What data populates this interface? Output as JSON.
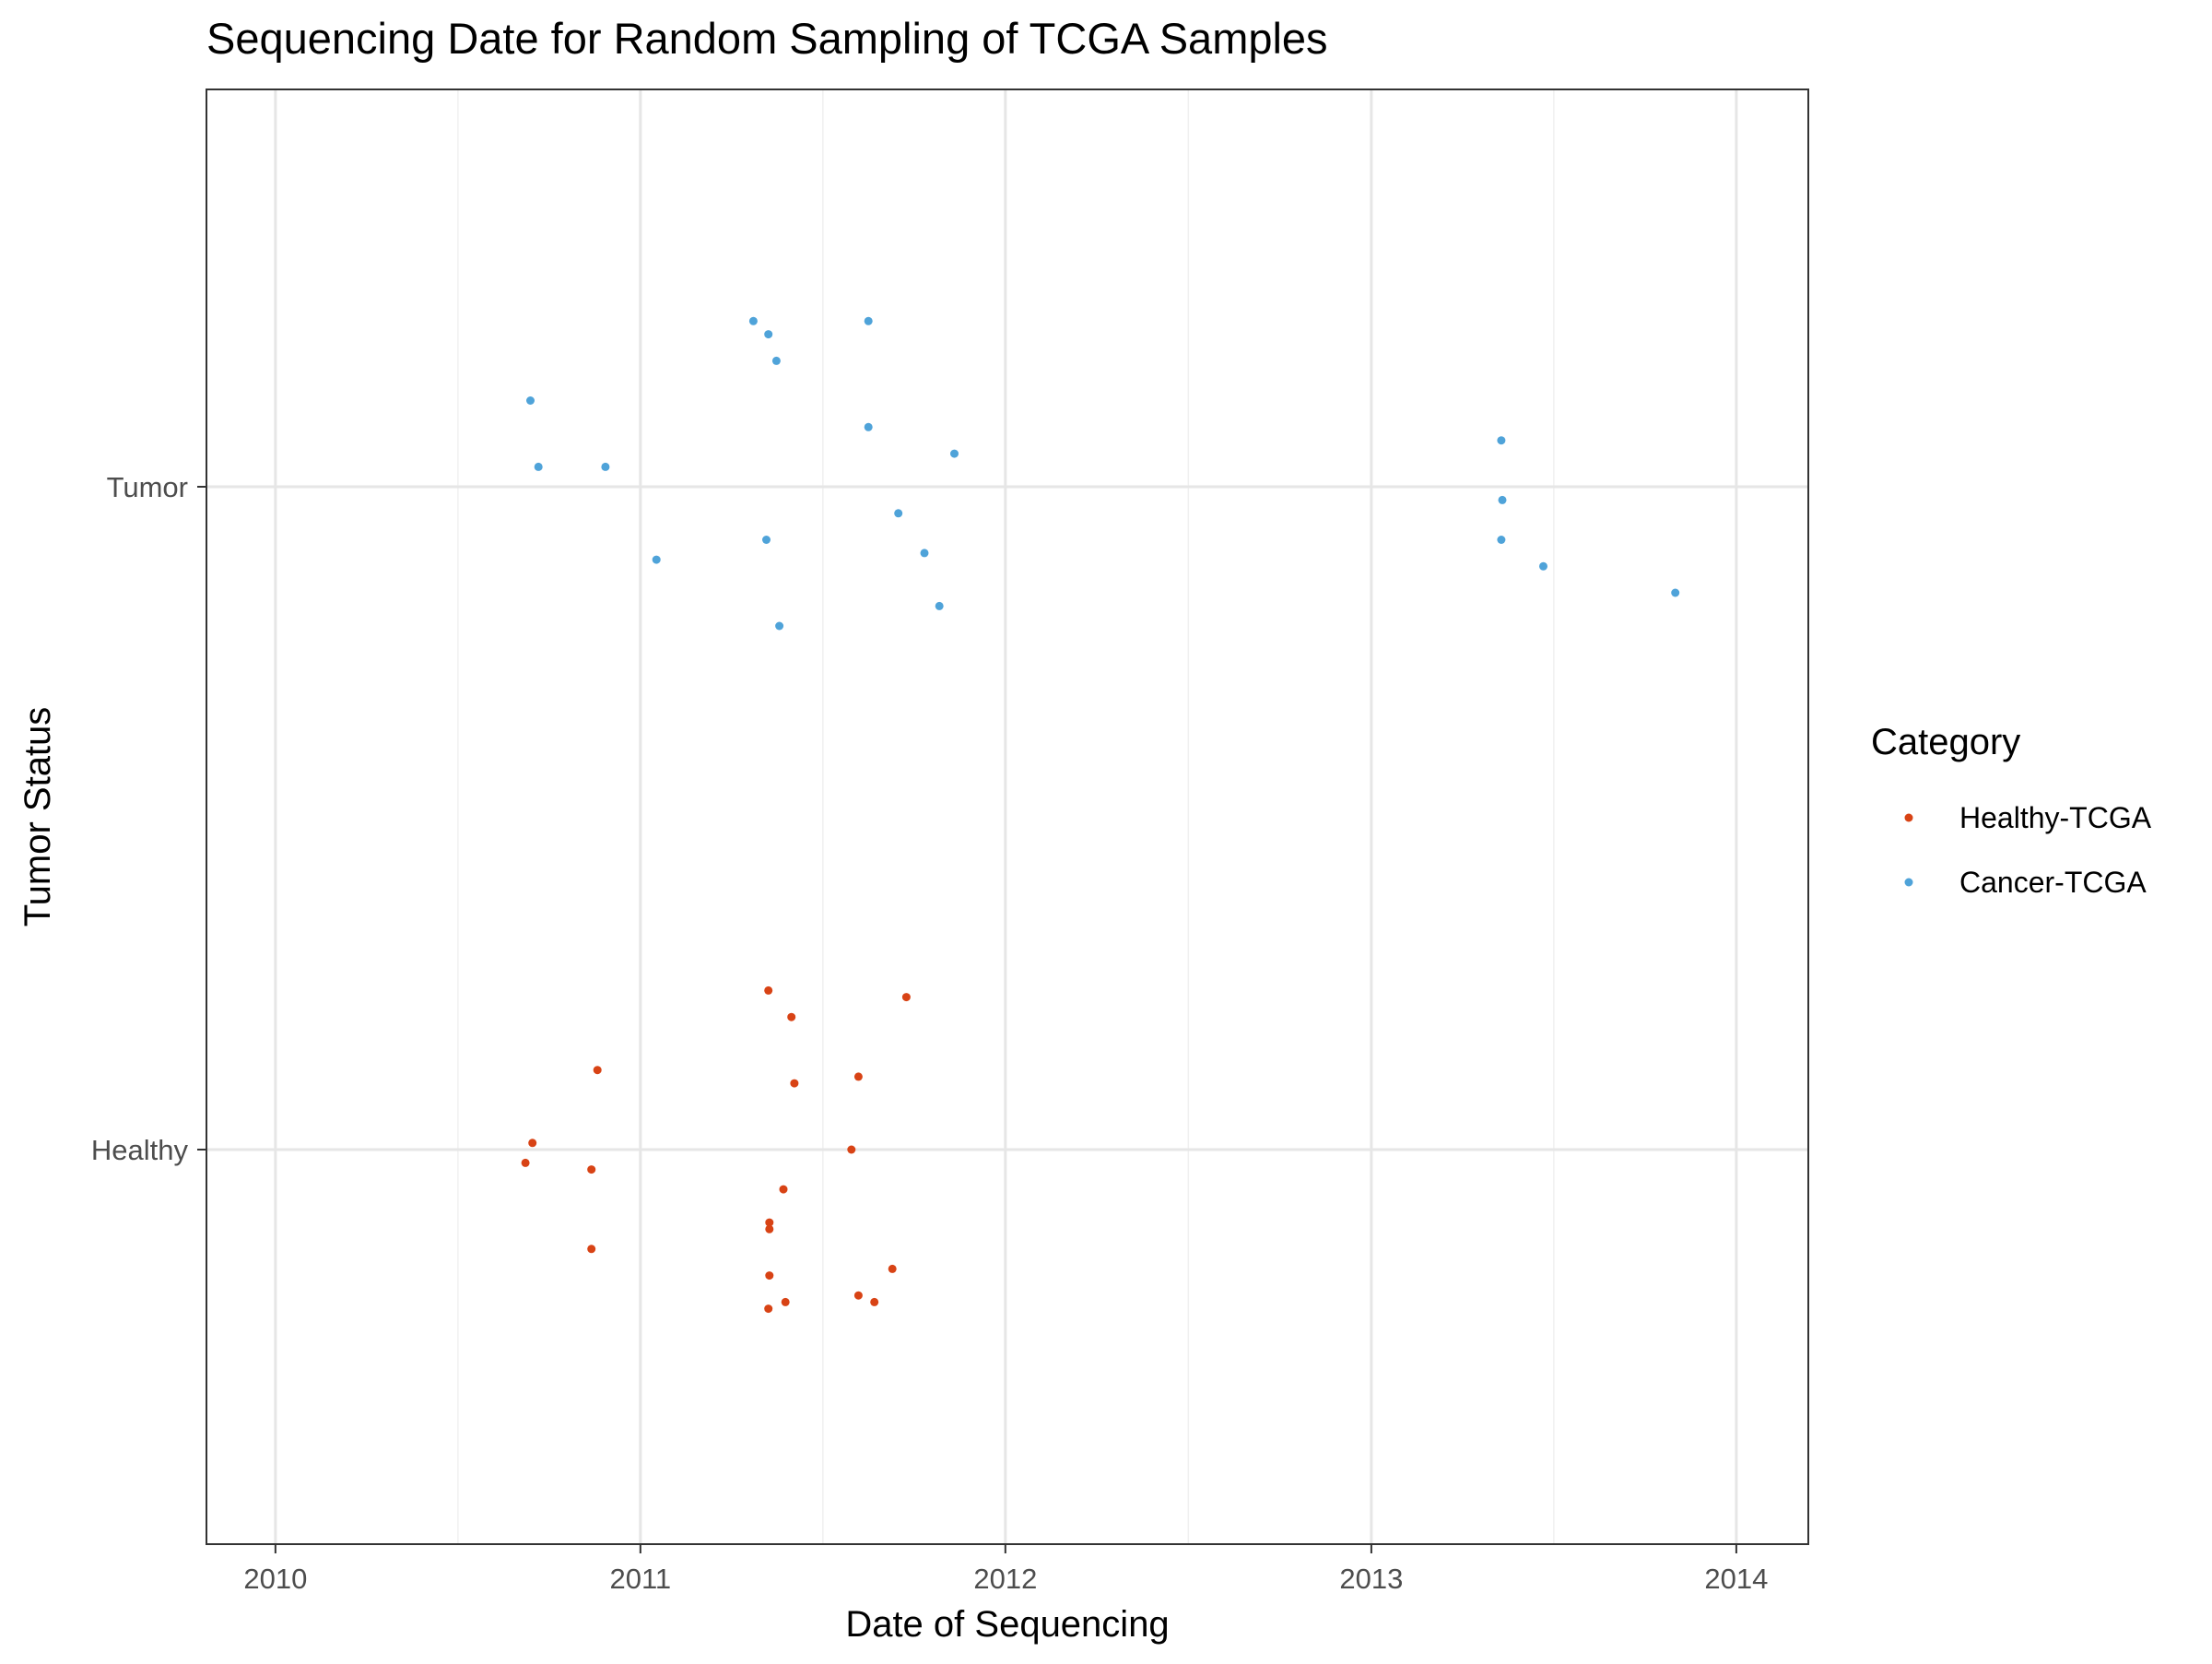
{
  "chart_data": {
    "type": "scatter",
    "title": "Sequencing Date for Random Sampling of TCGA Samples",
    "xlabel": "Date of Sequencing",
    "ylabel": "Tumor Status",
    "x_type": "date",
    "xlim": [
      "2009-10-24",
      "2014-03-14"
    ],
    "x_ticks": [
      "2010",
      "2011",
      "2012",
      "2013",
      "2014"
    ],
    "y_categories": [
      "Healthy",
      "Tumor"
    ],
    "grid": true,
    "legend": {
      "title": "Category",
      "position": "right"
    },
    "series": [
      {
        "name": "Healthy-TCGA",
        "color": "#d84315",
        "category": "Healthy",
        "points": [
          {
            "x": "2010-09-08",
            "jitter": -0.02
          },
          {
            "x": "2010-09-15",
            "jitter": 0.01
          },
          {
            "x": "2010-11-13",
            "jitter": -0.03
          },
          {
            "x": "2010-11-13",
            "jitter": -0.15
          },
          {
            "x": "2010-11-19",
            "jitter": 0.12
          },
          {
            "x": "2011-05-09",
            "jitter": 0.24
          },
          {
            "x": "2011-05-10",
            "jitter": -0.11
          },
          {
            "x": "2011-05-10",
            "jitter": -0.12
          },
          {
            "x": "2011-05-10",
            "jitter": -0.19
          },
          {
            "x": "2011-05-09",
            "jitter": -0.24
          },
          {
            "x": "2011-05-24",
            "jitter": -0.06
          },
          {
            "x": "2011-05-26",
            "jitter": -0.23
          },
          {
            "x": "2011-06-01",
            "jitter": 0.2
          },
          {
            "x": "2011-06-04",
            "jitter": 0.1
          },
          {
            "x": "2011-07-31",
            "jitter": 0.0
          },
          {
            "x": "2011-08-07",
            "jitter": 0.11
          },
          {
            "x": "2011-08-07",
            "jitter": -0.22
          },
          {
            "x": "2011-08-23",
            "jitter": -0.23
          },
          {
            "x": "2011-09-10",
            "jitter": -0.18
          },
          {
            "x": "2011-09-24",
            "jitter": 0.23
          }
        ]
      },
      {
        "name": "Cancer-TCGA",
        "color": "#4fa3d9",
        "category": "Tumor",
        "points": [
          {
            "x": "2010-09-13",
            "jitter": 0.13
          },
          {
            "x": "2010-09-21",
            "jitter": 0.03
          },
          {
            "x": "2010-11-27",
            "jitter": 0.03
          },
          {
            "x": "2011-01-17",
            "jitter": -0.11
          },
          {
            "x": "2011-04-24",
            "jitter": 0.25
          },
          {
            "x": "2011-05-09",
            "jitter": 0.23
          },
          {
            "x": "2011-05-07",
            "jitter": -0.08
          },
          {
            "x": "2011-05-17",
            "jitter": 0.19
          },
          {
            "x": "2011-05-20",
            "jitter": -0.21
          },
          {
            "x": "2011-08-17",
            "jitter": 0.25
          },
          {
            "x": "2011-08-17",
            "jitter": 0.09
          },
          {
            "x": "2011-09-16",
            "jitter": -0.04
          },
          {
            "x": "2011-10-12",
            "jitter": -0.1
          },
          {
            "x": "2011-10-27",
            "jitter": -0.18
          },
          {
            "x": "2011-11-11",
            "jitter": 0.05
          },
          {
            "x": "2013-05-11",
            "jitter": 0.07
          },
          {
            "x": "2013-05-12",
            "jitter": -0.02
          },
          {
            "x": "2013-05-11",
            "jitter": -0.08
          },
          {
            "x": "2013-06-22",
            "jitter": -0.12
          },
          {
            "x": "2013-11-01",
            "jitter": -0.16
          }
        ]
      }
    ]
  }
}
